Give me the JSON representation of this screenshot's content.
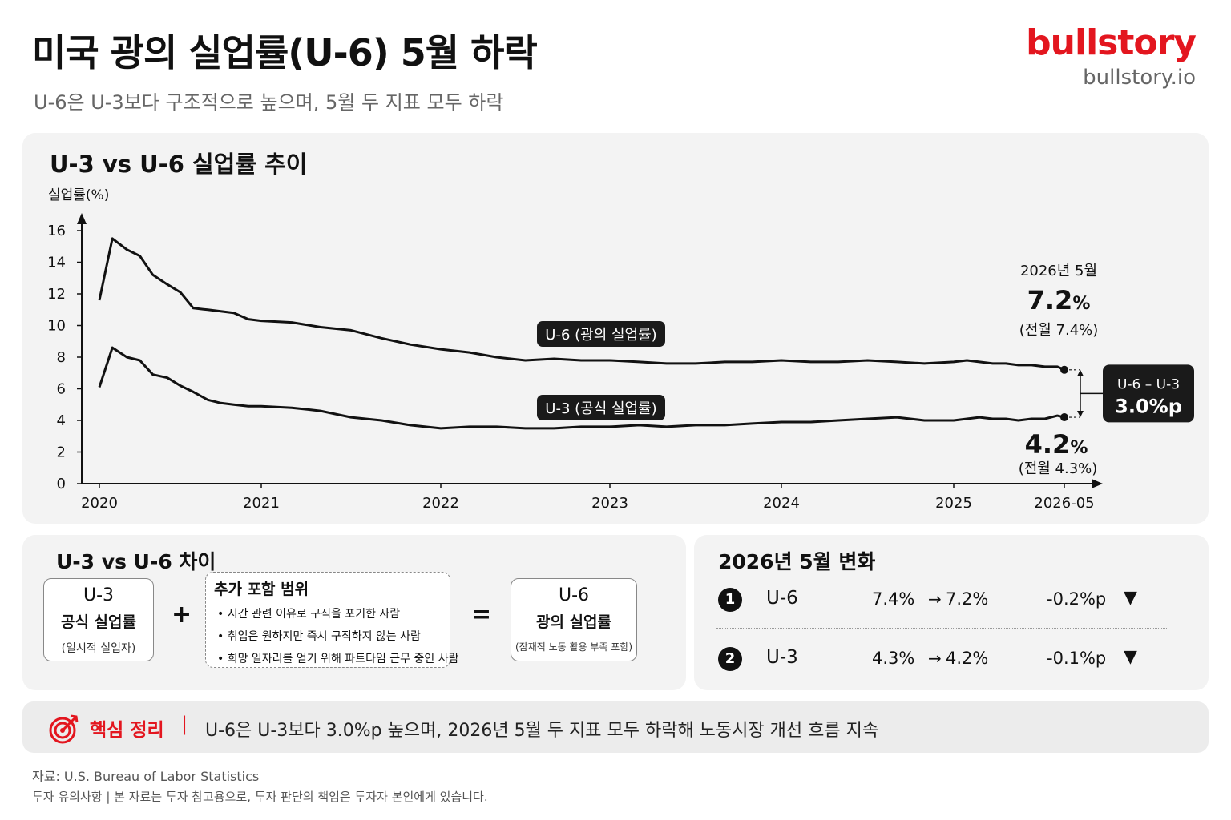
{
  "header": {
    "title": "미국 광의 실업률(U-6) 5월 하락",
    "subtitle": "U-6은 U-3보다 구조적으로 높으며, 5월 두 지표 모두 하락",
    "brand": "bullstory",
    "brand_url": "bullstory.io"
  },
  "colors": {
    "accent": "#e3161f",
    "line": "#111111",
    "panel": "#f3f3f3"
  },
  "chart_data": {
    "type": "line",
    "title": "U-3 vs U-6 실업률 추이",
    "ylabel": "실업률(%)",
    "xlabel": "",
    "ylim": [
      0,
      16
    ],
    "yticks": [
      0,
      2,
      4,
      6,
      8,
      10,
      12,
      14,
      16
    ],
    "xtick_labels": [
      "2020",
      "2021",
      "2022",
      "2023",
      "2024",
      "2025",
      "2026-05"
    ],
    "xtick_dates": [
      2020.0,
      2021.0,
      2022.0,
      2023.0,
      2024.0,
      2025.0,
      2026.42
    ],
    "x": [
      2020.0,
      2020.08,
      2020.17,
      2020.25,
      2020.33,
      2020.42,
      2020.5,
      2020.58,
      2020.67,
      2020.75,
      2020.83,
      2020.92,
      2021.0,
      2021.17,
      2021.33,
      2021.5,
      2021.67,
      2021.83,
      2022.0,
      2022.17,
      2022.33,
      2022.5,
      2022.67,
      2022.83,
      2023.0,
      2023.17,
      2023.33,
      2023.5,
      2023.67,
      2023.83,
      2024.0,
      2024.17,
      2024.33,
      2024.5,
      2024.67,
      2024.83,
      2025.0,
      2025.17,
      2025.33,
      2025.5,
      2025.67,
      2025.83,
      2026.0,
      2026.17,
      2026.33,
      2026.42
    ],
    "series": [
      {
        "name": "U-6 (광의 실업률)",
        "values": [
          11.6,
          15.5,
          14.8,
          14.4,
          13.2,
          12.6,
          12.1,
          11.1,
          11.0,
          10.9,
          10.8,
          10.4,
          10.3,
          10.2,
          9.9,
          9.7,
          9.2,
          8.8,
          8.5,
          8.3,
          8.0,
          7.8,
          7.9,
          7.8,
          7.8,
          7.7,
          7.6,
          7.6,
          7.7,
          7.7,
          7.8,
          7.7,
          7.7,
          7.8,
          7.7,
          7.6,
          7.7,
          7.8,
          7.7,
          7.6,
          7.6,
          7.5,
          7.5,
          7.4,
          7.4,
          7.2
        ]
      },
      {
        "name": "U-3 (공식 실업률)",
        "values": [
          6.1,
          8.6,
          8.0,
          7.8,
          6.9,
          6.7,
          6.2,
          5.8,
          5.3,
          5.1,
          5.0,
          4.9,
          4.9,
          4.8,
          4.6,
          4.2,
          4.0,
          3.7,
          3.5,
          3.6,
          3.6,
          3.5,
          3.5,
          3.6,
          3.6,
          3.7,
          3.6,
          3.7,
          3.7,
          3.8,
          3.9,
          3.9,
          4.0,
          4.1,
          4.2,
          4.0,
          4.0,
          4.1,
          4.2,
          4.1,
          4.1,
          4.0,
          4.1,
          4.1,
          4.3,
          4.2
        ]
      }
    ],
    "annotations": {
      "u6_date": "2026년 5월",
      "u6_value": "7.2",
      "u6_prev": "(전월 7.4%)",
      "u3_value": "4.2",
      "u3_prev": "(전월 4.3%)",
      "pct": "%",
      "gap_label": "U-6 – U-3",
      "gap_value": "3.0%p"
    },
    "grid": false,
    "legend": "inline-labels"
  },
  "diff": {
    "title": "U-3 vs U-6 차이",
    "u3_code": "U-3",
    "u3_name": "공식 실업률",
    "u3_desc": "(일시적 실업자)",
    "plus": "+",
    "extra_title": "추가 포함 범위",
    "extra_items": [
      "• 시간 관련 이유로 구직을 포기한 사람",
      "• 취업은 원하지만 즉시 구직하지 않는 사람",
      "• 희망 일자리를 얻기 위해 파트타임 근무 중인 사람"
    ],
    "equals": "=",
    "u6_code": "U-6",
    "u6_name": "광의 실업률",
    "u6_desc": "(잠재적 노동 활용 부족 포함)"
  },
  "change": {
    "title": "2026년 5월 변화",
    "rows": [
      {
        "num": "1",
        "name": "U-6",
        "from": "7.4%",
        "arrow": "→",
        "to": "7.2%",
        "diff": "-0.2%p",
        "tri": "▼"
      },
      {
        "num": "2",
        "name": "U-3",
        "from": "4.3%",
        "arrow": "→",
        "to": "4.2%",
        "diff": "-0.1%p",
        "tri": "▼"
      }
    ]
  },
  "key": {
    "label": "핵심 정리",
    "divider": "|",
    "text": "U-6은 U-3보다 3.0%p 높으며, 2026년 5월 두 지표 모두 하락해 노동시장 개선 흐름 지속"
  },
  "footer": {
    "source": "자료: U.S. Bureau of Labor Statistics",
    "disclaimer": "투자 유의사항  |  본 자료는 투자 참고용으로, 투자 판단의 책임은 투자자 본인에게 있습니다."
  }
}
